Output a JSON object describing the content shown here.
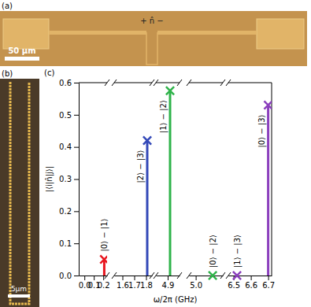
{
  "panels": {
    "a": {
      "label": "(a)",
      "scale_bar": "50 μm",
      "port_label": "+ n̂ −"
    },
    "b": {
      "label": "(b)",
      "scale_bar": "5μm"
    },
    "c": {
      "label": "(c)"
    }
  },
  "chart_data": {
    "type": "stem",
    "x_label": "ω/2π (GHz)",
    "y_label": "|⟨i|n̂|j⟩|",
    "x": [
      0.21,
      1.81,
      4.91,
      5.05,
      6.52,
      6.7
    ],
    "values": [
      0.05,
      0.42,
      0.575,
      0.0,
      0.0,
      0.53
    ],
    "annotations": [
      "|0⟩ − |1⟩",
      "|2⟩ − |3⟩",
      "|1⟩ − |2⟩",
      "|0⟩ − |2⟩",
      "|1⟩ − |3⟩",
      "|0⟩ − |3⟩"
    ],
    "colors": [
      "#e8161f",
      "#3348b8",
      "#2fb34a",
      "#2fb34a",
      "#8b3fbd",
      "#8b3fbd"
    ],
    "marker": "x",
    "x_segments": [
      {
        "xlim": [
          -0.06,
          0.24
        ],
        "xticks": [
          {
            "value": 0,
            "label": "0.0"
          },
          0.1,
          0.2
        ]
      },
      {
        "xlim": [
          1.53,
          1.85
        ],
        "xticks": [
          1.6,
          1.7,
          1.8
        ]
      },
      {
        "xlim": [
          4.85,
          4.95
        ],
        "xticks": [
          4.9
        ]
      },
      {
        "xlim": [
          4.98,
          5.08
        ],
        "xticks": [
          {
            "value": 5,
            "label": "5.0"
          }
        ]
      },
      {
        "xlim": [
          6.47,
          6.72
        ],
        "xticks": [
          6.5,
          6.6,
          6.7
        ]
      }
    ],
    "ylim": [
      0,
      0.6
    ],
    "yticks": [
      {
        "value": 0,
        "label": "0.0"
      },
      0.1,
      0.2,
      0.3,
      0.4,
      0.5,
      0.6
    ],
    "grid": false
  }
}
